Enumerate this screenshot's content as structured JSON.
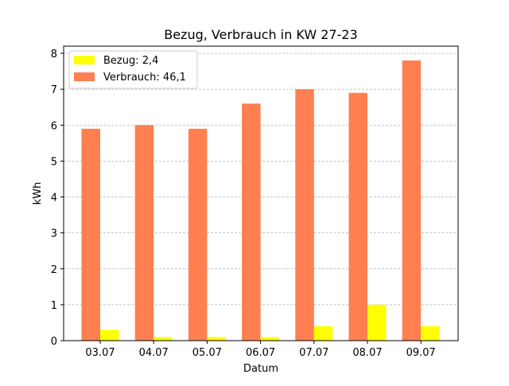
{
  "chart_data": {
    "type": "bar",
    "title": "Bezug, Verbrauch in KW 27-23",
    "xlabel": "Datum",
    "ylabel": "kWh",
    "categories": [
      "03.07",
      "04.07",
      "05.07",
      "06.07",
      "07.07",
      "08.07",
      "09.07"
    ],
    "ylim": [
      0,
      8.2
    ],
    "yticks": [
      0,
      1,
      2,
      3,
      4,
      5,
      6,
      7,
      8
    ],
    "grid": "horizontal-dashed",
    "legend_position": "top-left",
    "series": [
      {
        "name": "Verbrauch: 46,1",
        "color": "#ff7f50",
        "values": [
          5.9,
          6.0,
          5.9,
          6.6,
          7.0,
          6.9,
          7.8
        ]
      },
      {
        "name": "Bezug: 2,4",
        "color": "#ffff00",
        "values": [
          0.3,
          0.1,
          0.1,
          0.1,
          0.4,
          1.0,
          0.4
        ]
      }
    ],
    "legend_order": [
      1,
      0
    ]
  }
}
